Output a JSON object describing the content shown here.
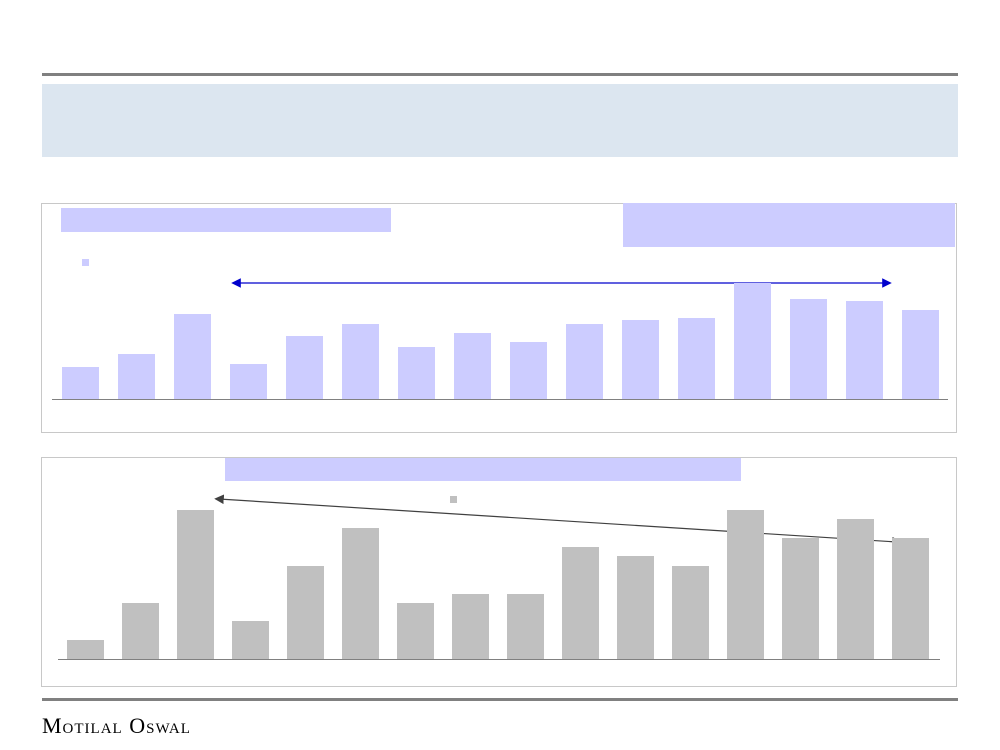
{
  "chart_data": [
    {
      "type": "bar",
      "categories": [
        null,
        null,
        null,
        null,
        null,
        null,
        null,
        null,
        null,
        null,
        null,
        null,
        null,
        null,
        null,
        null
      ],
      "values": [
        32,
        45,
        85,
        35,
        63,
        75,
        52,
        66,
        57,
        75,
        79,
        81,
        116,
        100,
        98,
        89
      ],
      "color": "#ccccff",
      "ylim": [
        0,
        120
      ]
    },
    {
      "type": "bar",
      "categories": [
        null,
        null,
        null,
        null,
        null,
        null,
        null,
        null,
        null,
        null,
        null,
        null,
        null,
        null,
        null,
        null
      ],
      "values": [
        19,
        56,
        149,
        38,
        93,
        131,
        56,
        65,
        65,
        112,
        103,
        93,
        149,
        121,
        140,
        121
      ],
      "color": "#c0c0c0",
      "ylim": [
        0,
        150
      ]
    }
  ],
  "footer": {
    "brand": "Motilal Oswal"
  }
}
